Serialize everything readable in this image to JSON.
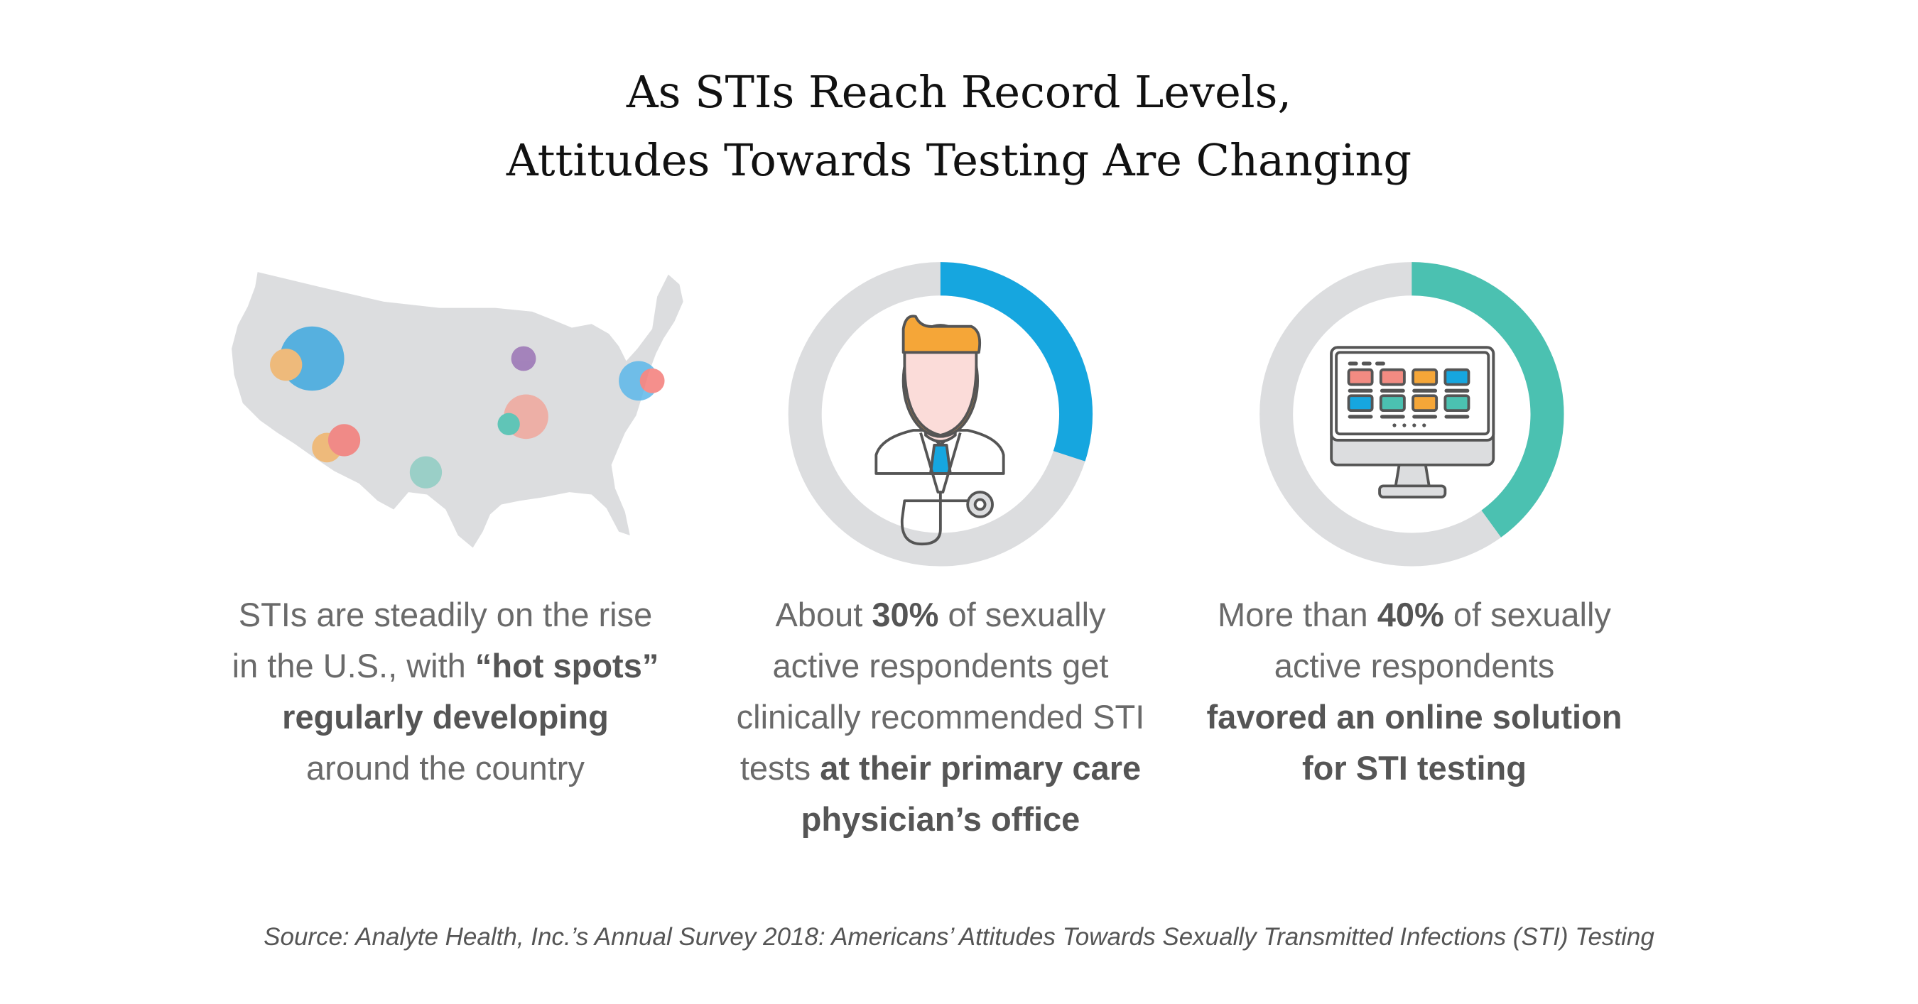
{
  "title": {
    "line1": "As STIs Reach Record Levels,",
    "line2": "Attitudes Towards Testing Are Changing"
  },
  "colors": {
    "ring": "#dcdddf",
    "blue": "#16a6df",
    "teal": "#4bc1b1",
    "map": "#dcdddf",
    "orange": "#f5a638",
    "salmon": "#f28b82",
    "purple": "#9a73b5"
  },
  "stats": [
    {
      "percent": 30,
      "color": "#16a6df",
      "icon": "doctor-icon"
    },
    {
      "percent": 40,
      "color": "#4bc1b1",
      "icon": "computer-monitor-icon"
    }
  ],
  "columns": [
    {
      "l1": "STIs are steadily on the rise",
      "l2a": "in the U.S., with ",
      "l2b": "“hot spots”",
      "l3": "regularly developing",
      "l4": "around the country"
    },
    {
      "l1a": "About ",
      "l1b": "30%",
      "l1c": " of sexually",
      "l2": "active respondents get",
      "l3": "clinically recommended STI",
      "l4a": "tests ",
      "l4b": "at their primary care",
      "l5": "physician’s office"
    },
    {
      "l1a": "More than ",
      "l1b": "40%",
      "l1c": " of sexually",
      "l2": "active respondents",
      "l3": "favored an online solution",
      "l4": "for STI testing"
    }
  ],
  "source": "Source:  Analyte Health, Inc.’s Annual Survey 2018: Americans’ Attitudes Towards Sexually Transmitted Infections (STI) Testing"
}
